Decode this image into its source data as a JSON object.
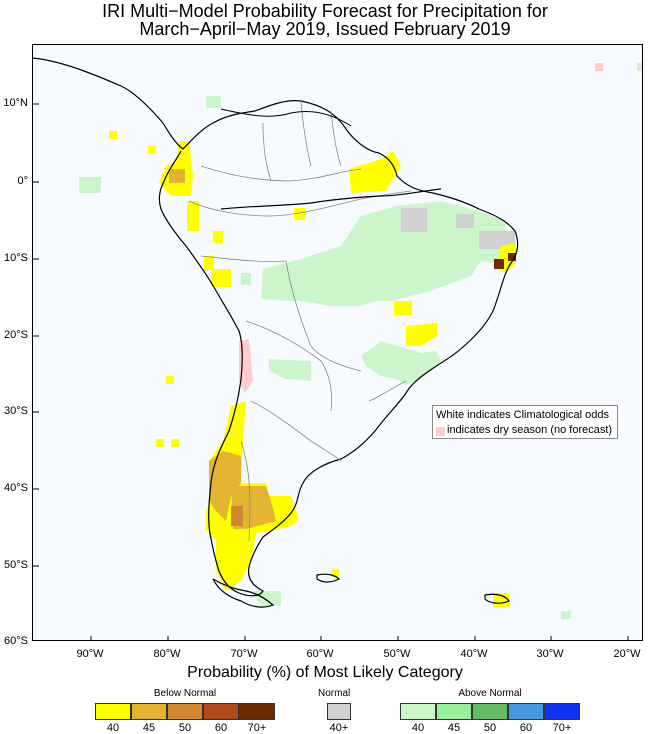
{
  "title_line1": "IRI Multi−Model Probability Forecast for Precipitation for",
  "title_line2": "March−April−May 2019, Issued February 2019",
  "lat_labels": [
    "10°N",
    "0°",
    "10°S",
    "20°S",
    "30°S",
    "40°S",
    "50°S",
    "60°S"
  ],
  "lon_labels": [
    "90°W",
    "80°W",
    "70°W",
    "60°W",
    "50°W",
    "40°W",
    "30°W",
    "20°W"
  ],
  "legend": {
    "white_note": "White indicates Climatological odds",
    "dry_note": "indicates dry season (no forecast)",
    "dry_color": "#ffcccc"
  },
  "colorbar": {
    "title": "Probability (%) of Most Likely Category",
    "below": {
      "label": "Below Normal",
      "ticks": [
        "40",
        "45",
        "50",
        "60",
        "70+"
      ],
      "colors": [
        "#ffff00",
        "#e3b431",
        "#d0872f",
        "#b04a1d",
        "#6b2a00"
      ]
    },
    "normal": {
      "label": "Normal",
      "ticks": [
        "40+"
      ],
      "colors": [
        "#d0d0d0"
      ]
    },
    "above": {
      "label": "Above Normal",
      "ticks": [
        "40",
        "45",
        "50",
        "60",
        "70+"
      ],
      "colors": [
        "#ccf5cc",
        "#99ee99",
        "#66bb66",
        "#4499dd",
        "#1133ee"
      ]
    }
  }
}
